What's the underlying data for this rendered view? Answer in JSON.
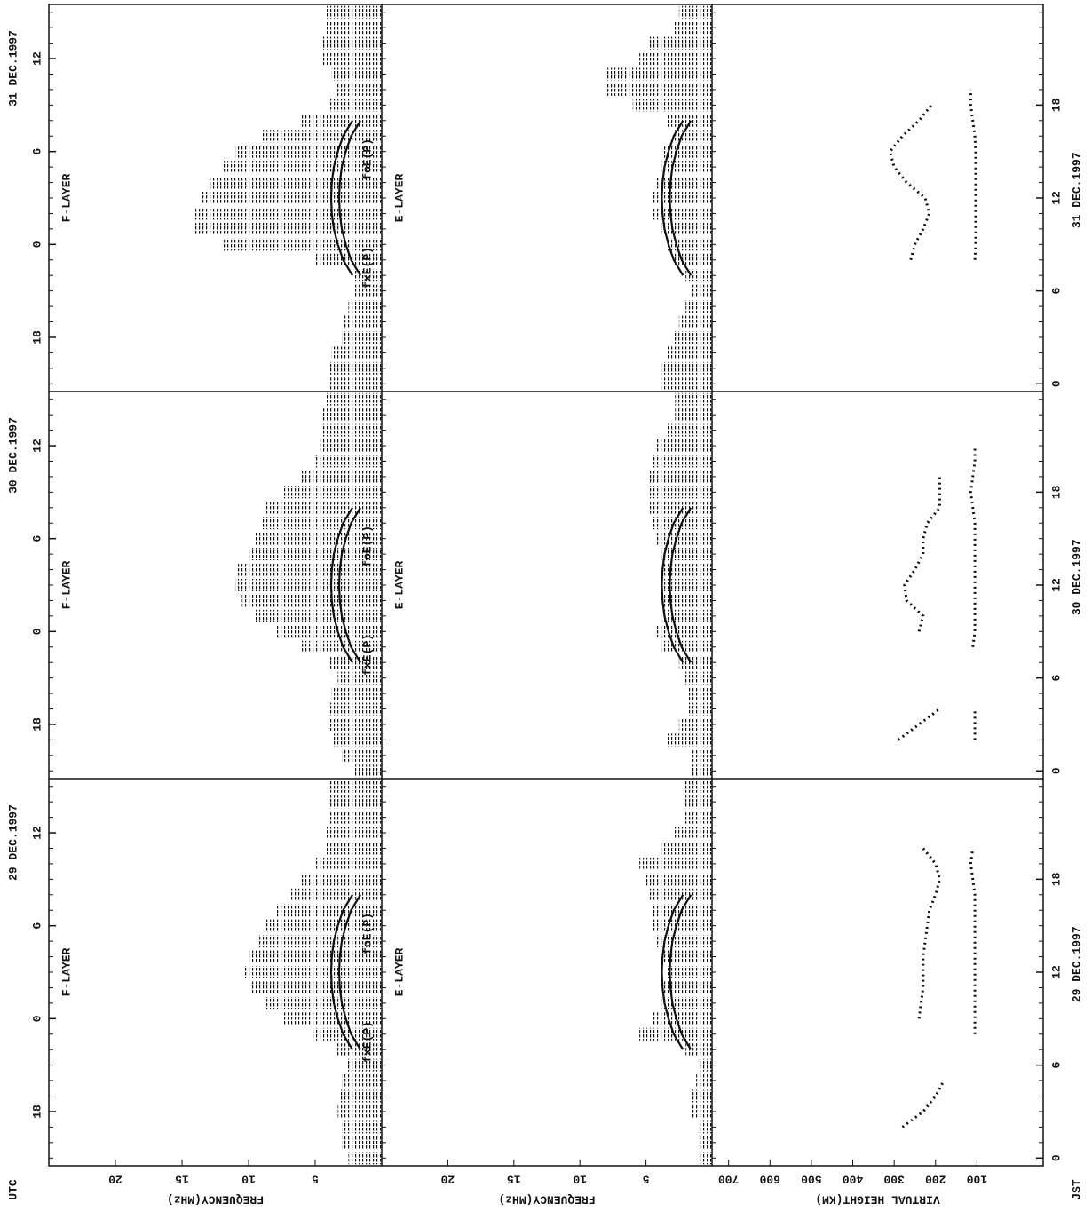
{
  "chart_data": {
    "type": "ionogram-summary",
    "x": [
      0,
      1,
      2,
      3,
      4,
      5,
      6,
      7,
      8,
      9,
      10,
      11,
      12,
      13,
      14,
      15,
      16,
      17,
      18,
      19,
      20,
      21,
      22,
      23,
      24
    ],
    "xlim": [
      -0.5,
      24.5
    ],
    "freq_lim": [
      25,
      0
    ],
    "freq_ticks": [
      20,
      15,
      10,
      5
    ],
    "height_lim": [
      740,
      -60
    ],
    "height_ticks": [
      700,
      600,
      500,
      400,
      300,
      200,
      100
    ],
    "freq_label": "FREQUENCY(MHz)",
    "height_label": "VIRTUAL HEIGHT(KM)",
    "utc_label": "UTC",
    "jst_label": "JST",
    "f_layer_label": "F-LAYER",
    "e_layer_label": "E-LAYER",
    "model": {
      "hours": [
        7,
        8,
        9,
        10,
        11,
        12,
        13,
        14,
        15,
        16,
        17
      ],
      "foE_label": "foE(P)",
      "fxE_label": "fxE(P)",
      "foE": [
        1.6,
        2.3,
        2.7,
        3.0,
        3.15,
        3.2,
        3.15,
        3.0,
        2.7,
        2.3,
        1.6
      ],
      "fxE": [
        2.2,
        2.9,
        3.3,
        3.6,
        3.75,
        3.8,
        3.75,
        3.6,
        3.3,
        2.9,
        2.2
      ]
    },
    "days": [
      {
        "utc_date": "31 DEC.1997",
        "jst_date": "31 DEC.1997",
        "utc_ticks": [
          {
            "value": 21,
            "label": "12"
          },
          {
            "value": 15,
            "label": "6"
          },
          {
            "value": 9,
            "label": "0"
          },
          {
            "value": 3,
            "label": "18"
          }
        ],
        "jst_ticks": [
          0,
          6,
          12,
          18
        ],
        "F_top": [
          4,
          4,
          3.8,
          3,
          2.8,
          2.5,
          2,
          2,
          5,
          12,
          14,
          14,
          13.5,
          13,
          12,
          11,
          9,
          6,
          4,
          3.5,
          3.8,
          4.5,
          4.5,
          4.3,
          4.3
        ],
        "E_top": [
          4,
          4,
          3.5,
          3,
          2.5,
          2,
          1.5,
          2,
          3,
          3.5,
          4,
          4.5,
          4.5,
          4.3,
          4,
          3.8,
          3,
          3.5,
          6,
          8,
          8,
          5.5,
          4.8,
          3,
          2.5
        ],
        "hF": [
          null,
          null,
          null,
          null,
          null,
          null,
          null,
          null,
          260,
          250,
          230,
          215,
          225,
          270,
          300,
          310,
          280,
          240,
          210,
          null,
          null,
          null,
          null,
          null,
          null
        ],
        "hE": [
          null,
          null,
          105,
          null,
          null,
          null,
          null,
          null,
          105,
          103,
          103,
          103,
          103,
          103,
          103,
          103,
          105,
          110,
          115,
          115,
          null,
          null,
          null,
          null,
          null
        ]
      },
      {
        "utc_date": "30 DEC.1997",
        "jst_date": "30 DEC.1997",
        "utc_ticks": [
          {
            "value": 21,
            "label": "12"
          },
          {
            "value": 15,
            "label": "6"
          },
          {
            "value": 9,
            "label": "0"
          },
          {
            "value": 3,
            "label": "18"
          }
        ],
        "jst_ticks": [
          0,
          6,
          12,
          18
        ],
        "F_top": [
          2,
          3,
          3.7,
          4,
          4,
          3.8,
          3.3,
          4,
          6,
          8,
          9.5,
          10.5,
          11,
          10.8,
          10,
          9.5,
          9,
          8.7,
          7.5,
          6,
          5,
          4.7,
          4.5,
          4.4,
          4.3
        ],
        "E_top": [
          1.5,
          1.5,
          3.5,
          2.5,
          1.8,
          1.8,
          2.1,
          2.5,
          4,
          4.2,
          3.8,
          3.8,
          3.8,
          3.8,
          4,
          4.2,
          4.5,
          4.8,
          4.8,
          4.8,
          4.5,
          4.2,
          3.5,
          2.8,
          2.8
        ],
        "hF": [
          null,
          null,
          290,
          240,
          190,
          null,
          null,
          null,
          null,
          240,
          230,
          270,
          275,
          250,
          230,
          230,
          220,
          190,
          190,
          190,
          null,
          null,
          null,
          null,
          null
        ],
        "hE": [
          null,
          null,
          105,
          105,
          105,
          null,
          null,
          null,
          110,
          105,
          105,
          105,
          105,
          105,
          105,
          105,
          105,
          110,
          115,
          110,
          105,
          105,
          null,
          null,
          null
        ]
      },
      {
        "utc_date": "29 DEC.1997",
        "jst_date": "29 DEC.1997",
        "utc_ticks": [
          {
            "value": 21,
            "label": "12"
          },
          {
            "value": 15,
            "label": "6"
          },
          {
            "value": 9,
            "label": "0"
          },
          {
            "value": 3,
            "label": "18"
          }
        ],
        "jst_ticks": [
          0,
          6,
          12,
          18
        ],
        "F_top": [
          2.5,
          3,
          3,
          3.3,
          3.2,
          3,
          2.7,
          3.5,
          5.3,
          7.5,
          8.7,
          9.8,
          10.3,
          10,
          9.3,
          8.7,
          8,
          7,
          6,
          5,
          4.3,
          4.2,
          4,
          4,
          4
        ],
        "E_top": [
          1,
          1,
          1,
          1.5,
          1.5,
          1.2,
          1.1,
          2,
          5.5,
          4.5,
          4,
          3.8,
          3.5,
          3.8,
          4.2,
          4.5,
          4.5,
          4.8,
          5,
          5.5,
          4,
          3,
          2.1,
          2.1,
          2.1
        ],
        "hF": [
          null,
          null,
          280,
          230,
          200,
          180,
          null,
          null,
          null,
          240,
          235,
          230,
          230,
          230,
          225,
          220,
          215,
          200,
          190,
          200,
          230,
          null,
          null,
          null,
          null
        ],
        "hE": [
          null,
          null,
          null,
          null,
          null,
          null,
          null,
          null,
          105,
          105,
          105,
          105,
          105,
          105,
          105,
          105,
          105,
          105,
          110,
          115,
          110,
          null,
          null,
          null,
          null
        ]
      }
    ]
  }
}
